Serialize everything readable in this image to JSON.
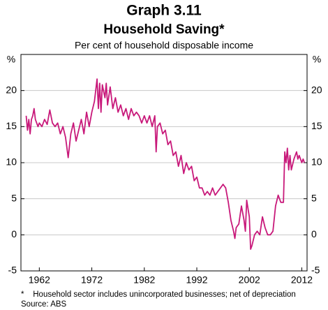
{
  "chart_data": {
    "type": "line",
    "title": "Graph 3.11",
    "subtitle": "Household Saving*",
    "y_label_caption": "Per cent of household disposable income",
    "y_unit": "%",
    "footnote": "*    Household sector includes unincorporated businesses; net of depreciation",
    "source": "Source: ABS",
    "color": "#c8197a",
    "grid": true,
    "xlim": [
      1958.5,
      2013
    ],
    "xticks": [
      1962,
      1972,
      1982,
      1992,
      2002,
      2012
    ],
    "ylim": [
      -5,
      25
    ],
    "yticks": [
      -5,
      0,
      5,
      10,
      15,
      20
    ],
    "x": [
      1959.5,
      1959.75,
      1960,
      1960.25,
      1960.5,
      1960.75,
      1961,
      1961.25,
      1961.5,
      1961.75,
      1962,
      1962.5,
      1963,
      1963.5,
      1964,
      1964.5,
      1965,
      1965.5,
      1966,
      1966.5,
      1967,
      1967.5,
      1968,
      1968.5,
      1969,
      1969.5,
      1970,
      1970.5,
      1971,
      1971.5,
      1972,
      1972.5,
      1973,
      1973.25,
      1973.5,
      1973.75,
      1974,
      1974.5,
      1974.75,
      1975,
      1975.5,
      1976,
      1976.5,
      1977,
      1977.5,
      1978,
      1978.5,
      1979,
      1979.5,
      1980,
      1980.5,
      1981,
      1981.5,
      1982,
      1982.5,
      1983,
      1983.5,
      1984,
      1984.25,
      1984.5,
      1985,
      1985.5,
      1986,
      1986.5,
      1987,
      1987.5,
      1988,
      1988.5,
      1989,
      1989.5,
      1990,
      1990.5,
      1991,
      1991.5,
      1992,
      1992.5,
      1993,
      1993.5,
      1994,
      1994.5,
      1995,
      1995.5,
      1996,
      1996.5,
      1997,
      1997.5,
      1998,
      1998.5,
      1999,
      1999.25,
      1999.5,
      2000,
      2000.5,
      2001,
      2001.25,
      2001.5,
      2002,
      2002.25,
      2002.5,
      2003,
      2003.5,
      2004,
      2004.5,
      2005,
      2005.5,
      2006,
      2006.5,
      2007,
      2007.5,
      2008,
      2008.5,
      2008.75,
      2009,
      2009.25,
      2009.5,
      2009.75,
      2010,
      2010.5,
      2011,
      2011.25,
      2011.5,
      2012,
      2012.25,
      2012.5
    ],
    "values": [
      16.5,
      14.5,
      16,
      14,
      16,
      16.5,
      17.5,
      16,
      15.5,
      15,
      15.5,
      15,
      16,
      15.3,
      17.3,
      15.5,
      15,
      15.5,
      14,
      15,
      13.5,
      10.7,
      14,
      15.5,
      13,
      14.5,
      16,
      14,
      17,
      15,
      17,
      18.5,
      21.6,
      17.5,
      21,
      17,
      20.8,
      19,
      21,
      18,
      20.5,
      17.5,
      19,
      17,
      18,
      16.5,
      17.5,
      16,
      17.5,
      16.5,
      17,
      16.5,
      15.5,
      16.5,
      15.5,
      16.5,
      15,
      16.5,
      11.5,
      15,
      15.5,
      14,
      14.5,
      12.5,
      13,
      11,
      11.5,
      9.5,
      11,
      8.5,
      10,
      9,
      9.5,
      7.5,
      8,
      6.5,
      6.5,
      5.5,
      6,
      5.5,
      6.5,
      5.5,
      6,
      6.5,
      7,
      6.5,
      4.5,
      2,
      0.5,
      -0.5,
      1,
      1.5,
      4,
      2,
      0.5,
      4.8,
      2.5,
      -2,
      -1.5,
      0,
      0.5,
      0,
      2.5,
      1,
      0,
      0,
      0.5,
      4,
      5.5,
      4.5,
      4.5,
      11.5,
      10,
      12,
      9,
      11,
      9,
      10.5,
      11.5,
      10.5,
      11,
      10,
      10.5,
      10
    ]
  }
}
